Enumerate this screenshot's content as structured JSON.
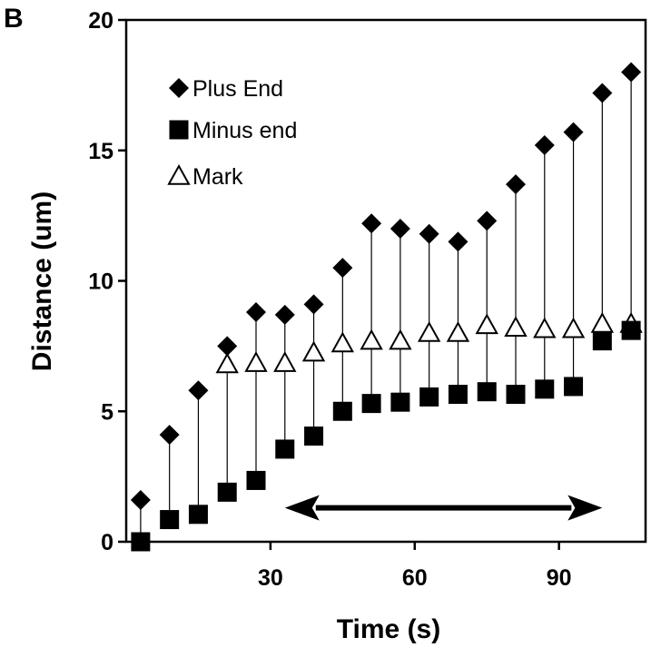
{
  "panel_label": "B",
  "chart_data": {
    "type": "scatter",
    "xlabel": "Time (s)",
    "ylabel": "Distance (um)",
    "xlim": [
      0,
      108
    ],
    "ylim": [
      0,
      20
    ],
    "xticks": [
      30,
      60,
      90
    ],
    "yticks": [
      0,
      5,
      10,
      15,
      20
    ],
    "legend_position": "top-left",
    "grid": false,
    "x": [
      3,
      9,
      15,
      21,
      27,
      33,
      39,
      45,
      51,
      57,
      63,
      69,
      75,
      81,
      87,
      93,
      99,
      105
    ],
    "series": [
      {
        "name": "Plus End",
        "marker": "diamond",
        "values": [
          1.6,
          4.1,
          5.8,
          7.5,
          8.8,
          8.7,
          9.1,
          10.5,
          12.2,
          12.0,
          11.8,
          11.5,
          12.3,
          13.7,
          15.2,
          15.7,
          17.2,
          18.0
        ]
      },
      {
        "name": "Minus end",
        "marker": "square",
        "values": [
          0.0,
          0.85,
          1.05,
          1.9,
          2.35,
          3.55,
          4.05,
          5.0,
          5.3,
          5.35,
          5.55,
          5.65,
          5.75,
          5.65,
          5.85,
          5.95,
          7.7,
          8.1
        ]
      },
      {
        "name": "Mark",
        "marker": "open-triangle",
        "values": [
          null,
          null,
          null,
          6.8,
          6.85,
          6.85,
          7.25,
          7.6,
          7.7,
          7.7,
          8.0,
          8.0,
          8.3,
          8.2,
          8.15,
          8.15,
          8.35,
          8.35
        ]
      }
    ],
    "annotations": [
      {
        "type": "double-arrow",
        "x_start": 33,
        "x_end": 99,
        "y": 1.3
      }
    ]
  }
}
